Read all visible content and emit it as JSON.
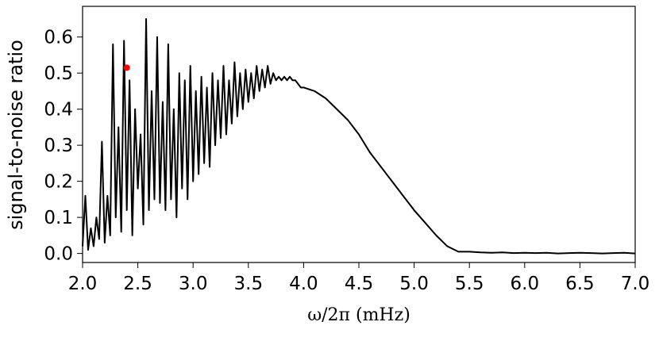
{
  "chart_data": {
    "type": "line",
    "x_label": "ω/2π (mHz)",
    "y_label": "signal-to-noise ratio",
    "xlim": [
      2.0,
      7.0
    ],
    "ylim": [
      -0.025,
      0.685
    ],
    "xticks": [
      {
        "value": 2,
        "label": "2.0"
      },
      2.5,
      {
        "value": 3,
        "label": "3.0"
      },
      3.5,
      {
        "value": 4,
        "label": "4.0"
      },
      4.5,
      {
        "value": 5,
        "label": "5.0"
      },
      5.5,
      {
        "value": 6,
        "label": "6.0"
      },
      6.5,
      {
        "value": 7,
        "label": "7.0"
      }
    ],
    "yticks": [
      {
        "value": 0,
        "label": "0.0"
      },
      0.1,
      0.2,
      0.3,
      0.4,
      0.5,
      0.6
    ],
    "series": [
      {
        "color": "#000000",
        "marker": false,
        "x": [
          2.0,
          2.025,
          2.05,
          2.075,
          2.1,
          2.125,
          2.15,
          2.175,
          2.2,
          2.225,
          2.25,
          2.275,
          2.3,
          2.325,
          2.35,
          2.375,
          2.4,
          2.425,
          2.45,
          2.475,
          2.5,
          2.525,
          2.55,
          2.575,
          2.6,
          2.625,
          2.65,
          2.675,
          2.7,
          2.725,
          2.75,
          2.775,
          2.8,
          2.825,
          2.85,
          2.875,
          2.9,
          2.925,
          2.95,
          2.975,
          3.0,
          3.025,
          3.05,
          3.075,
          3.1,
          3.125,
          3.15,
          3.175,
          3.2,
          3.225,
          3.25,
          3.275,
          3.3,
          3.325,
          3.35,
          3.375,
          3.4,
          3.425,
          3.45,
          3.475,
          3.5,
          3.525,
          3.55,
          3.575,
          3.6,
          3.625,
          3.65,
          3.675,
          3.7,
          3.725,
          3.75,
          3.775,
          3.8,
          3.825,
          3.85,
          3.875,
          3.9,
          3.925,
          3.95,
          3.975,
          4.0,
          4.1,
          4.2,
          4.3,
          4.4,
          4.5,
          4.6,
          4.7,
          4.8,
          4.9,
          5.0,
          5.1,
          5.2,
          5.3,
          5.4,
          5.5,
          5.6,
          5.7,
          5.8,
          5.9,
          6.0,
          6.1,
          6.2,
          6.3,
          6.4,
          6.5,
          6.6,
          6.7,
          6.8,
          6.9,
          7.0
        ],
        "values": [
          0.02,
          0.16,
          0.01,
          0.07,
          0.02,
          0.1,
          0.04,
          0.31,
          0.03,
          0.16,
          0.05,
          0.58,
          0.1,
          0.35,
          0.06,
          0.59,
          0.12,
          0.48,
          0.05,
          0.4,
          0.18,
          0.33,
          0.08,
          0.65,
          0.12,
          0.45,
          0.15,
          0.6,
          0.14,
          0.42,
          0.12,
          0.58,
          0.15,
          0.4,
          0.1,
          0.5,
          0.18,
          0.48,
          0.15,
          0.52,
          0.2,
          0.45,
          0.22,
          0.49,
          0.25,
          0.46,
          0.24,
          0.5,
          0.3,
          0.48,
          0.32,
          0.52,
          0.33,
          0.48,
          0.36,
          0.53,
          0.38,
          0.5,
          0.4,
          0.51,
          0.42,
          0.5,
          0.43,
          0.52,
          0.45,
          0.51,
          0.46,
          0.52,
          0.47,
          0.5,
          0.48,
          0.49,
          0.48,
          0.49,
          0.48,
          0.49,
          0.48,
          0.48,
          0.47,
          0.46,
          0.46,
          0.45,
          0.43,
          0.4,
          0.37,
          0.33,
          0.28,
          0.24,
          0.2,
          0.16,
          0.12,
          0.085,
          0.05,
          0.02,
          0.005,
          0.005,
          0.003,
          0.002,
          0.003,
          0.001,
          0.002,
          0.001,
          0.002,
          0.0,
          0.001,
          0.002,
          0.001,
          0.0,
          0.001,
          0.002,
          0.0
        ]
      },
      {
        "color": "#ff0000",
        "marker": true,
        "x": [
          2.4
        ],
        "values": [
          0.515
        ]
      }
    ]
  }
}
